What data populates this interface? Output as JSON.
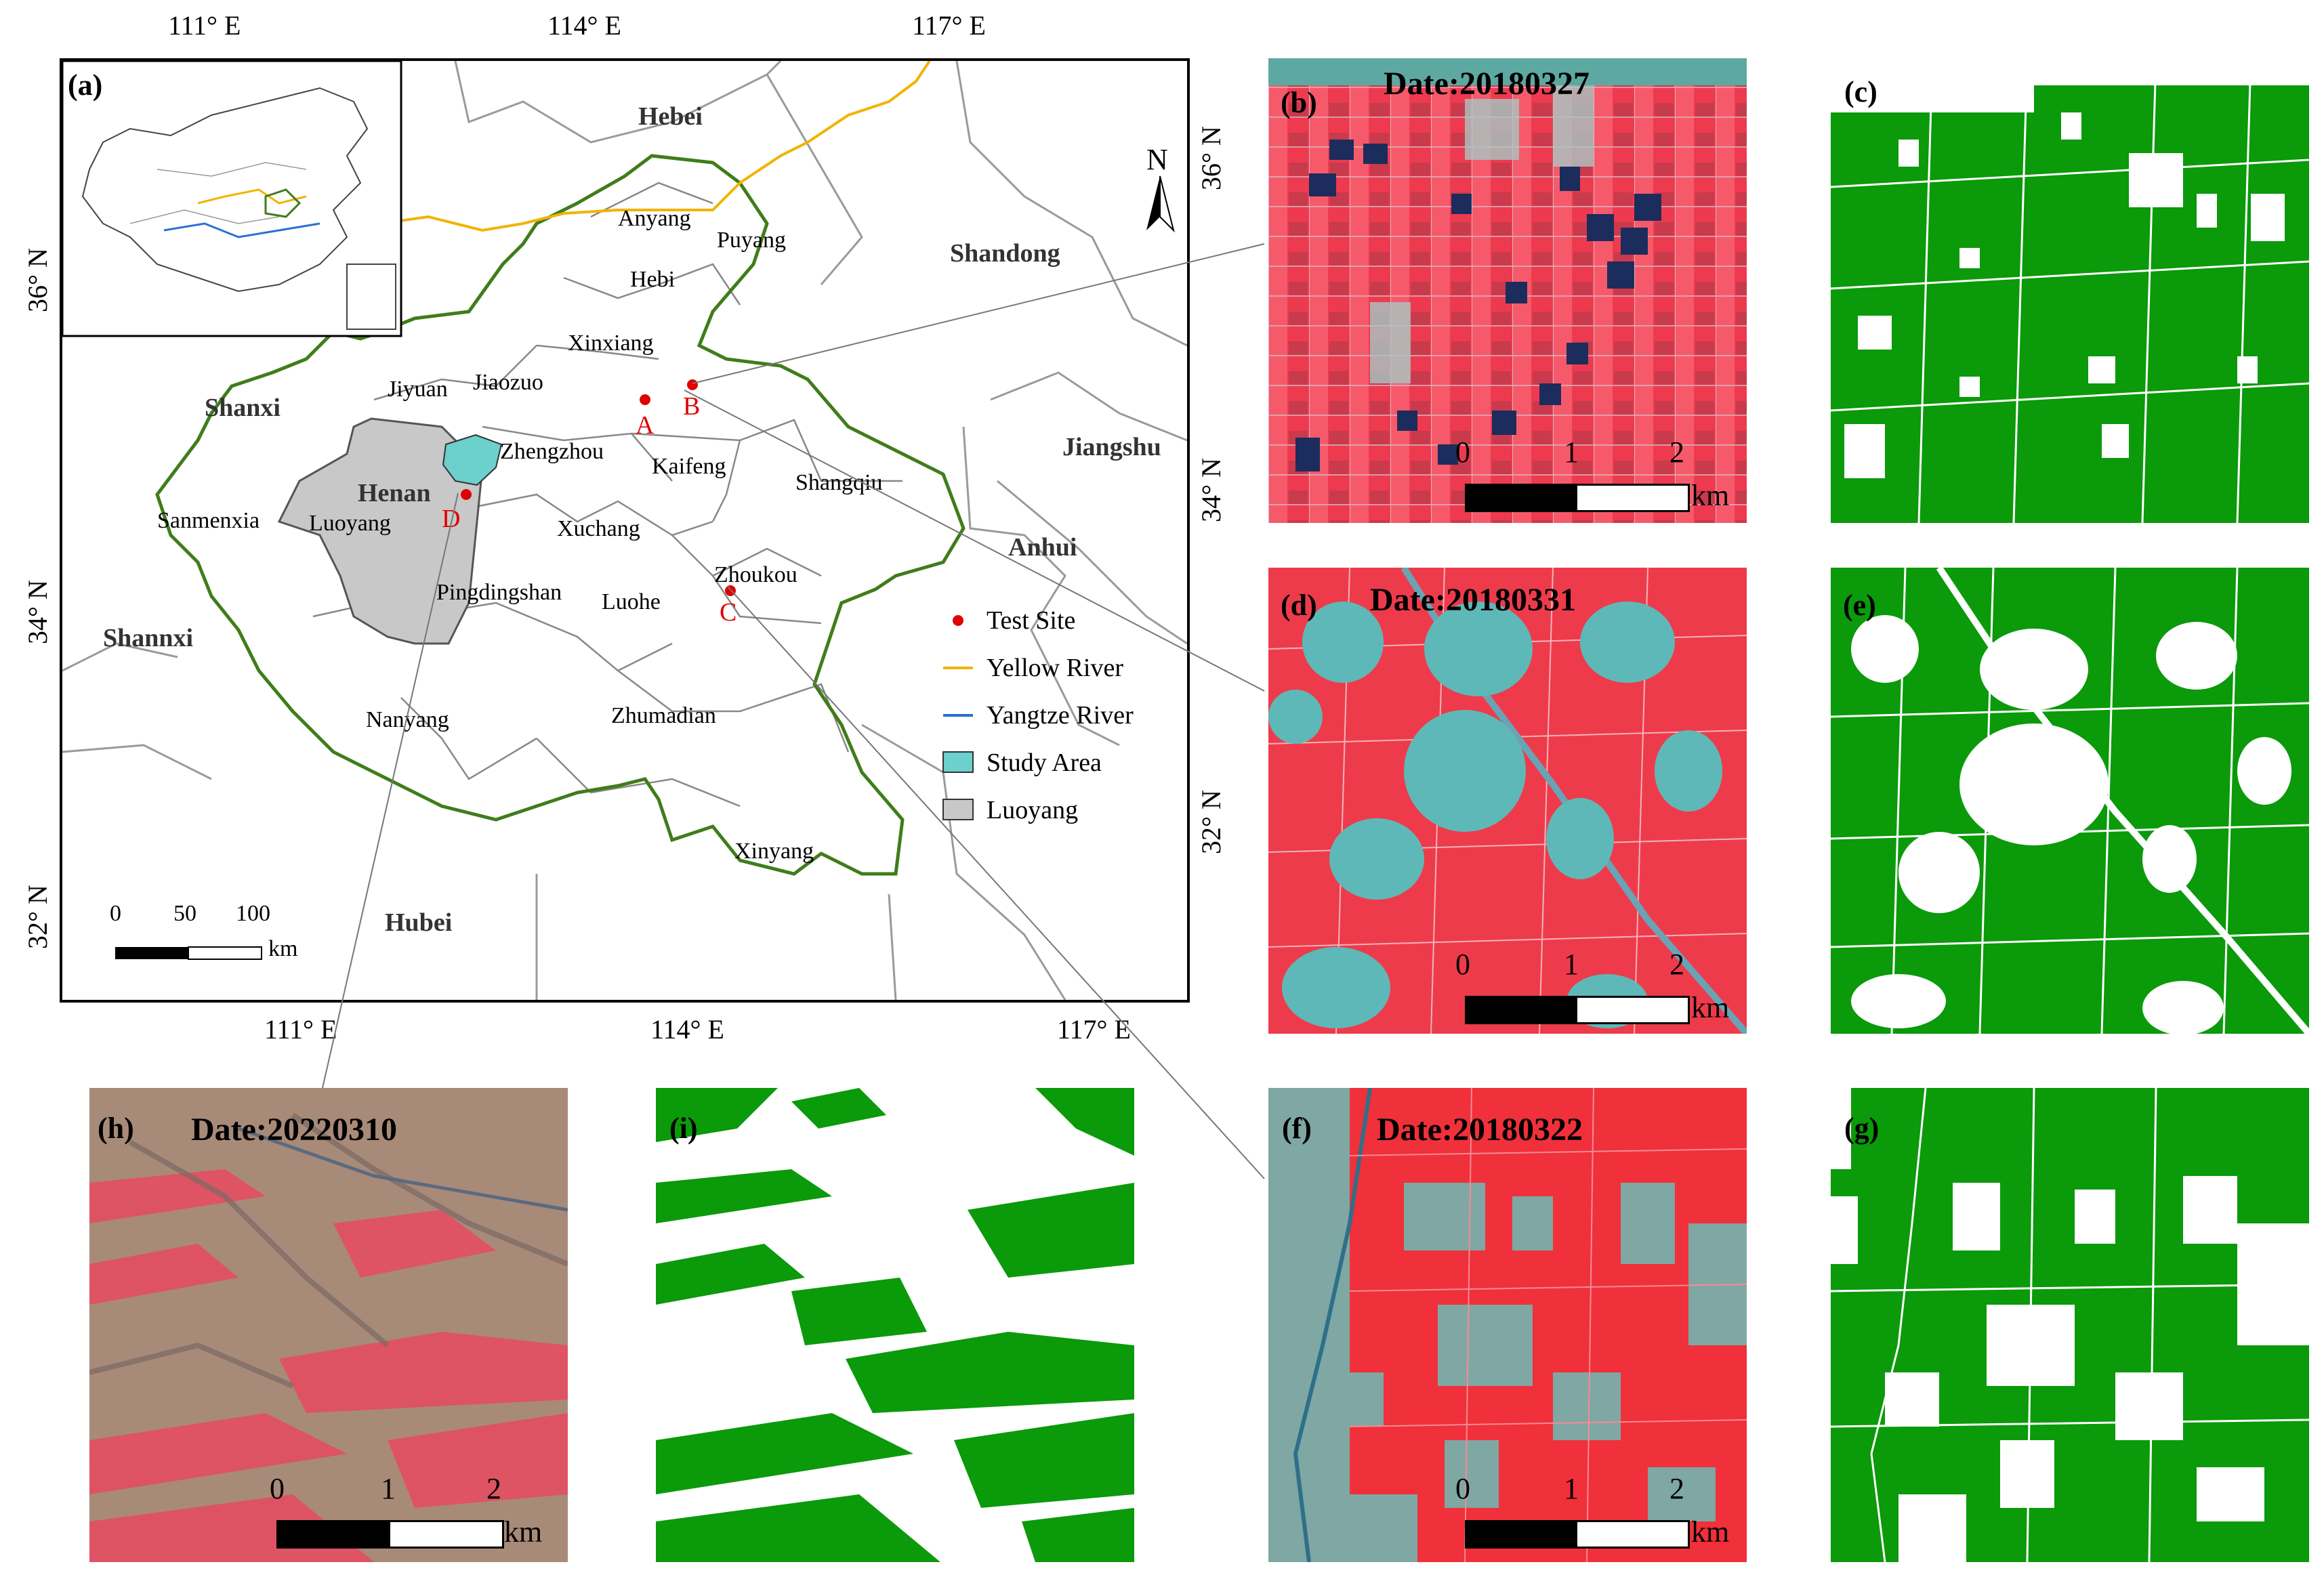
{
  "map": {
    "panel_label": "(a)",
    "top_lon_labels": [
      "111° E",
      "114° E",
      "117° E"
    ],
    "bottom_lon_labels": [
      "111° E",
      "114° E",
      "117° E"
    ],
    "left_lat_labels": [
      "36° N",
      "34° N",
      "32° N"
    ],
    "inner_lat_labels": [
      "36° N",
      "34° N",
      "32° N"
    ],
    "neighbors": [
      "Hebei",
      "Shandong",
      "Shanxi",
      "Jiangshu",
      "Anhui",
      "Shannxi",
      "Hubei"
    ],
    "province": "Henan",
    "cities": [
      "Anyang",
      "Puyang",
      "Hebi",
      "Xinxiang",
      "Jiyuan",
      "Jiaozuo",
      "Zhengzhou",
      "Kaifeng",
      "Shangqiu",
      "Sanmenxia",
      "Luoyang",
      "Xuchang",
      "Pingdingshan",
      "Luohe",
      "Zhoukou",
      "Nanyang",
      "Zhumadian",
      "Xinyang"
    ],
    "test_sites": [
      "A",
      "B",
      "C",
      "D"
    ],
    "north_label": "N",
    "scale": {
      "ticks": [
        "0",
        "50",
        "100"
      ],
      "unit": "km"
    },
    "legend": [
      {
        "label": "Test Site",
        "color": "#e00000"
      },
      {
        "label": "Yellow River",
        "color": "#f0b400"
      },
      {
        "label": "Yangtze River",
        "color": "#2a6fd6"
      },
      {
        "label": "Study Area",
        "color": "#6cd0cc"
      },
      {
        "label": "Luoyang",
        "color": "#c8c8c8"
      }
    ],
    "colors": {
      "province_border": "#3f7d1a",
      "admin_border": "#888888"
    }
  },
  "panels": {
    "b": {
      "letter": "(b)",
      "date": "Date:20180327"
    },
    "c": {
      "letter": "(c)"
    },
    "d": {
      "letter": "(d)",
      "date": "Date:20180331"
    },
    "e": {
      "letter": "(e)"
    },
    "f": {
      "letter": "(f)",
      "date": "Date:20180322"
    },
    "g": {
      "letter": "(g)"
    },
    "h": {
      "letter": "(h)",
      "date": "Date:20220310"
    },
    "i": {
      "letter": "(i)"
    }
  },
  "img_scale": {
    "ticks": [
      "0",
      "1",
      "2"
    ],
    "unit": "km"
  },
  "colors": {
    "wheat_green": "#0a9a0a",
    "false_color_red": "#ee3b4b",
    "cyan_village": "#5fb8b8"
  }
}
